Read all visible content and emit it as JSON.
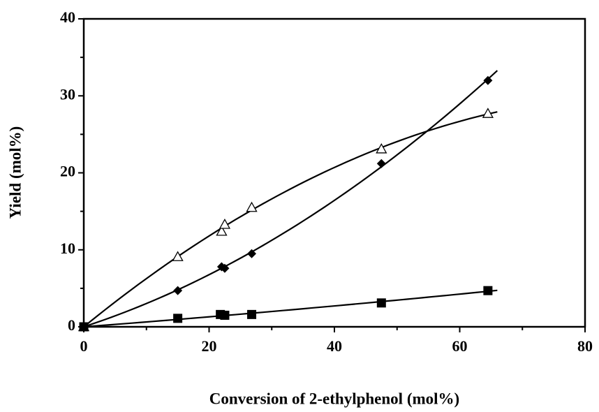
{
  "chart_data": {
    "type": "scatter",
    "x_label": "Conversion  of 2-ethylphenol (mol%)",
    "y_label": "Yield (mol%)",
    "xlim": [
      0,
      80
    ],
    "xticks": [
      0,
      20,
      40,
      60,
      80
    ],
    "xminor_ticks": [
      10,
      30,
      50,
      70
    ],
    "ylim": [
      0,
      40
    ],
    "yticks": [
      0,
      10,
      20,
      30,
      40
    ],
    "yminor_ticks": [
      5,
      15,
      25,
      35
    ],
    "trend": "quadratic",
    "series": [
      {
        "marker": "triangle-open",
        "color": "#000000",
        "x": [
          0,
          15,
          22,
          22.5,
          26.8,
          47.5,
          64.5
        ],
        "values": [
          0,
          9.1,
          12.4,
          13.3,
          15.5,
          23.1,
          27.7
        ]
      },
      {
        "marker": "diamond",
        "color": "#000000",
        "x": [
          0,
          15,
          22,
          22.5,
          26.8,
          47.5,
          64.5
        ],
        "values": [
          0,
          4.7,
          7.8,
          7.6,
          9.5,
          21.2,
          32
        ]
      },
      {
        "marker": "square",
        "color": "#000000",
        "x": [
          0,
          15,
          21.8,
          22.5,
          26.8,
          47.5,
          64.5
        ],
        "values": [
          0,
          1.1,
          1.6,
          1.5,
          1.6,
          3.1,
          4.7
        ]
      }
    ]
  }
}
